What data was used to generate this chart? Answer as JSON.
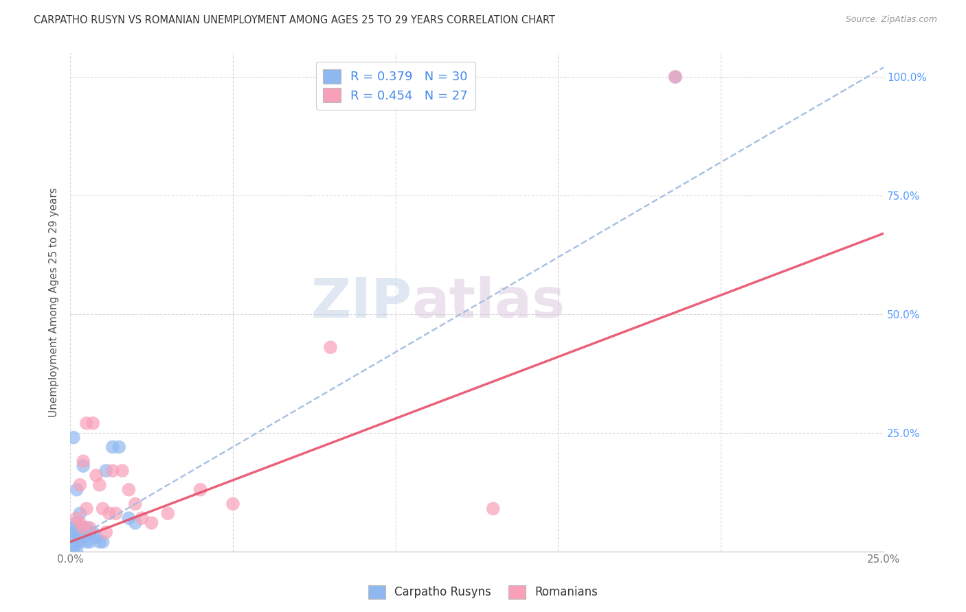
{
  "title": "CARPATHO RUSYN VS ROMANIAN UNEMPLOYMENT AMONG AGES 25 TO 29 YEARS CORRELATION CHART",
  "source": "Source: ZipAtlas.com",
  "ylabel": "Unemployment Among Ages 25 to 29 years",
  "xlim": [
    0.0,
    0.25
  ],
  "ylim": [
    0.0,
    1.05
  ],
  "xticks": [
    0.0,
    0.05,
    0.1,
    0.15,
    0.2,
    0.25
  ],
  "yticks": [
    0.0,
    0.25,
    0.5,
    0.75,
    1.0
  ],
  "xticklabels": [
    "0.0%",
    "",
    "",
    "",
    "",
    "25.0%"
  ],
  "yticklabels": [
    "",
    "25.0%",
    "50.0%",
    "75.0%",
    "100.0%"
  ],
  "carpatho_color": "#90b8f0",
  "romanian_color": "#f8a0b8",
  "trendline_carpatho_color": "#a0bce0",
  "trendline_romanian_color": "#e8506a",
  "background_color": "#ffffff",
  "grid_color": "#d8d8d8",
  "watermark_zip_color": "#c8d8ee",
  "watermark_atlas_color": "#d8c8e0",
  "carpatho_x": [
    0.001,
    0.001,
    0.001,
    0.001,
    0.001,
    0.002,
    0.002,
    0.002,
    0.002,
    0.003,
    0.003,
    0.003,
    0.004,
    0.004,
    0.005,
    0.005,
    0.006,
    0.006,
    0.007,
    0.008,
    0.009,
    0.01,
    0.011,
    0.013,
    0.015,
    0.018,
    0.02,
    0.001,
    0.002,
    0.186
  ],
  "carpatho_y": [
    0.05,
    0.04,
    0.03,
    0.01,
    0.0,
    0.13,
    0.06,
    0.04,
    0.02,
    0.08,
    0.04,
    0.02,
    0.18,
    0.03,
    0.05,
    0.02,
    0.04,
    0.02,
    0.04,
    0.03,
    0.02,
    0.02,
    0.17,
    0.22,
    0.22,
    0.07,
    0.06,
    0.24,
    0.0,
    1.0
  ],
  "romanian_x": [
    0.002,
    0.003,
    0.004,
    0.005,
    0.006,
    0.007,
    0.008,
    0.009,
    0.01,
    0.011,
    0.012,
    0.013,
    0.014,
    0.016,
    0.018,
    0.02,
    0.022,
    0.025,
    0.03,
    0.04,
    0.05,
    0.08,
    0.13,
    0.186,
    0.003,
    0.004,
    0.005
  ],
  "romanian_y": [
    0.07,
    0.06,
    0.05,
    0.27,
    0.05,
    0.27,
    0.16,
    0.14,
    0.09,
    0.04,
    0.08,
    0.17,
    0.08,
    0.17,
    0.13,
    0.1,
    0.07,
    0.06,
    0.08,
    0.13,
    0.1,
    0.43,
    0.09,
    1.0,
    0.14,
    0.19,
    0.09
  ],
  "trendline_carpatho_slope": 4.0,
  "trendline_carpatho_intercept": 0.02,
  "trendline_romanian_slope": 2.6,
  "trendline_romanian_intercept": 0.02
}
